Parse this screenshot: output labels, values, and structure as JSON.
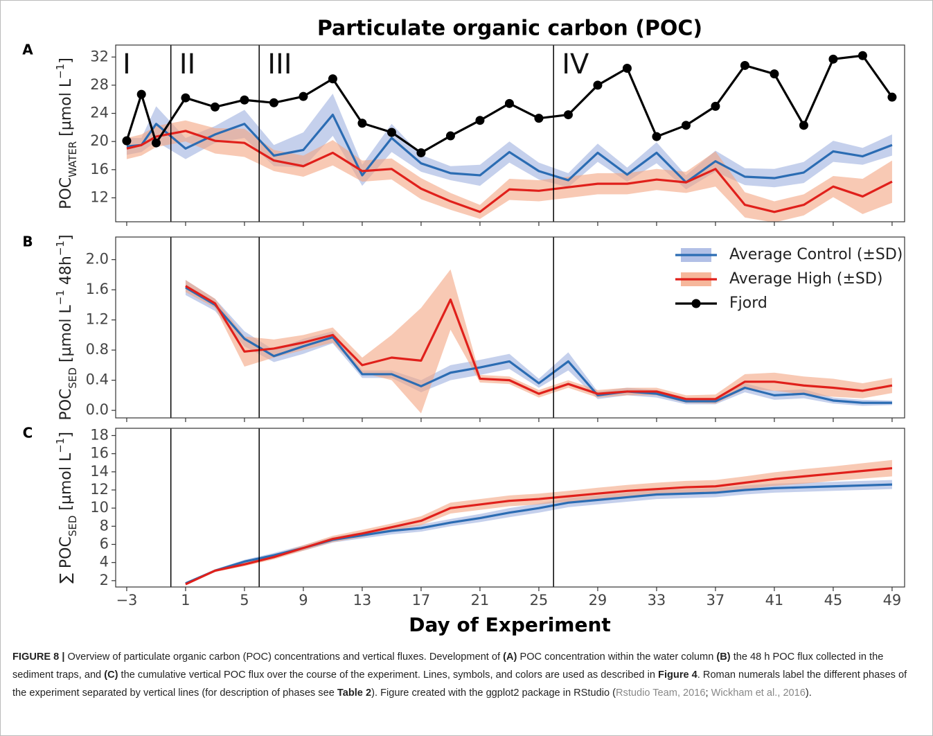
{
  "figure": {
    "title": "Particulate organic carbon (POC)",
    "xlabel": "Day of Experiment",
    "xlim": [
      -3.75,
      49.85
    ],
    "xticks": [
      {
        "value": -3,
        "label": "−3"
      },
      1,
      5,
      9,
      13,
      17,
      21,
      25,
      29,
      33,
      37,
      41,
      45,
      49
    ],
    "phase_lines": [
      0,
      6,
      26
    ],
    "phase_labels": [
      "I",
      "II",
      "III",
      "IV"
    ]
  },
  "chart_data": [
    {
      "type": "line",
      "panel_label": "A",
      "ylabel": [
        {
          "text": "POC"
        },
        {
          "text": "WATER",
          "sub": true
        },
        {
          "text": " [µmol L"
        },
        {
          "text": "−1",
          "sup": true
        },
        {
          "text": "]"
        }
      ],
      "x": [
        -3,
        -2,
        -1,
        1,
        3,
        5,
        7,
        9,
        11,
        13,
        15,
        17,
        19,
        21,
        23,
        25,
        27,
        29,
        31,
        33,
        35,
        37,
        39,
        41,
        43,
        45,
        47,
        49
      ],
      "ylim": [
        8.6,
        33.7
      ],
      "yticks": [
        12,
        16,
        20,
        24,
        28,
        32
      ],
      "series": [
        {
          "name": "Average Control (±SD)",
          "color": "#2b6cb3",
          "band_color": "#9fb0e0",
          "values": [
            19.3,
            19.5,
            22.5,
            19.0,
            21.0,
            22.5,
            18.0,
            18.8,
            23.8,
            15.2,
            20.5,
            16.9,
            15.5,
            15.2,
            18.5,
            15.8,
            14.5,
            18.4,
            15.3,
            18.4,
            14.2,
            17.2,
            15.0,
            14.8,
            15.6,
            18.6,
            17.9,
            19.5
          ],
          "sd": [
            1.2,
            1.0,
            2.5,
            1.5,
            1.2,
            2.0,
            1.5,
            2.5,
            3.0,
            1.5,
            2.0,
            1.2,
            1.0,
            1.5,
            1.5,
            1.2,
            1.0,
            1.3,
            1.0,
            1.5,
            1.0,
            1.5,
            1.2,
            1.3,
            1.5,
            1.5,
            1.2,
            1.5
          ]
        },
        {
          "name": "Average High (±SD)",
          "color": "#e0201b",
          "band_color": "#f4a582",
          "values": [
            19.0,
            19.5,
            20.7,
            21.5,
            20.1,
            19.8,
            17.3,
            16.5,
            18.4,
            15.8,
            16.1,
            13.3,
            11.5,
            10.0,
            13.2,
            13.0,
            13.5,
            14.0,
            14.0,
            14.6,
            14.2,
            16.1,
            11.0,
            10.0,
            11.0,
            13.6,
            12.2,
            14.3
          ],
          "sd": [
            1.5,
            1.5,
            1.5,
            1.5,
            1.8,
            2.0,
            1.5,
            1.5,
            1.8,
            1.5,
            1.5,
            1.5,
            1.2,
            1.0,
            1.5,
            1.5,
            1.5,
            1.5,
            1.5,
            1.5,
            1.5,
            2.5,
            1.8,
            1.5,
            1.5,
            1.5,
            2.5,
            3.0
          ]
        },
        {
          "name": "Fjord",
          "color": "#000000",
          "marker": true,
          "values": [
            20.1,
            26.7,
            19.8,
            26.2,
            24.9,
            25.9,
            25.5,
            26.4,
            28.9,
            22.6,
            21.3,
            18.4,
            20.8,
            23.0,
            25.4,
            23.3,
            23.8,
            28.0,
            30.4,
            20.7,
            22.3,
            25.0,
            30.8,
            29.6,
            22.3,
            31.7,
            32.2,
            26.3
          ]
        }
      ]
    },
    {
      "type": "line",
      "panel_label": "B",
      "ylabel": [
        {
          "text": "POC"
        },
        {
          "text": "SED",
          "sub": true
        },
        {
          "text": " [µmol L"
        },
        {
          "text": "−1",
          "sup": true
        },
        {
          "text": " 48h"
        },
        {
          "text": "−1",
          "sup": true
        },
        {
          "text": "]"
        }
      ],
      "x": [
        1,
        3,
        5,
        7,
        9,
        11,
        13,
        15,
        17,
        19,
        21,
        23,
        25,
        27,
        29,
        31,
        33,
        35,
        37,
        39,
        41,
        43,
        45,
        47,
        49
      ],
      "ylim": [
        -0.1,
        2.3
      ],
      "yticks": [
        {
          "value": 0,
          "label": "0.0"
        },
        0.4,
        0.8,
        1.2,
        1.6,
        {
          "value": 2,
          "label": "2.0"
        }
      ],
      "legend": "upper right",
      "series": [
        {
          "color": "#2b6cb3",
          "band_color": "#9fb0e0",
          "values": [
            1.63,
            1.4,
            0.95,
            0.72,
            0.85,
            0.97,
            0.48,
            0.48,
            0.32,
            0.5,
            0.57,
            0.65,
            0.36,
            0.65,
            0.2,
            0.25,
            0.22,
            0.12,
            0.12,
            0.3,
            0.2,
            0.22,
            0.13,
            0.1,
            0.1
          ],
          "sd": [
            0.1,
            0.08,
            0.1,
            0.08,
            0.1,
            0.08,
            0.05,
            0.05,
            0.08,
            0.1,
            0.1,
            0.1,
            0.06,
            0.12,
            0.05,
            0.05,
            0.05,
            0.04,
            0.04,
            0.06,
            0.06,
            0.06,
            0.04,
            0.04,
            0.03
          ]
        },
        {
          "color": "#e0201b",
          "band_color": "#f4a582",
          "values": [
            1.65,
            1.42,
            0.78,
            0.82,
            0.9,
            1.0,
            0.6,
            0.7,
            0.66,
            1.47,
            0.42,
            0.4,
            0.22,
            0.35,
            0.22,
            0.25,
            0.25,
            0.15,
            0.15,
            0.38,
            0.38,
            0.33,
            0.3,
            0.26,
            0.33
          ],
          "sd": [
            0.08,
            0.06,
            0.2,
            0.12,
            0.1,
            0.1,
            0.1,
            0.3,
            0.7,
            0.4,
            0.05,
            0.05,
            0.05,
            0.05,
            0.05,
            0.05,
            0.05,
            0.05,
            0.06,
            0.1,
            0.12,
            0.12,
            0.12,
            0.1,
            0.1
          ]
        }
      ]
    },
    {
      "type": "line",
      "panel_label": "C",
      "ylabel": [
        {
          "text": "∑ POC"
        },
        {
          "text": "SED",
          "sub": true
        },
        {
          "text": " [µmol L"
        },
        {
          "text": "−1",
          "sup": true
        },
        {
          "text": "]"
        }
      ],
      "x": [
        1,
        3,
        5,
        7,
        9,
        11,
        13,
        15,
        17,
        19,
        21,
        23,
        25,
        27,
        29,
        31,
        33,
        35,
        37,
        39,
        41,
        43,
        45,
        47,
        49
      ],
      "ylim": [
        1.3,
        18.8
      ],
      "yticks": [
        2,
        4,
        6,
        8,
        10,
        12,
        14,
        16,
        18
      ],
      "series": [
        {
          "color": "#2b6cb3",
          "band_color": "#9fb0e0",
          "values": [
            1.7,
            3.1,
            4.1,
            4.8,
            5.6,
            6.5,
            7.0,
            7.5,
            7.8,
            8.4,
            8.9,
            9.5,
            10.0,
            10.6,
            10.9,
            11.2,
            11.5,
            11.6,
            11.7,
            12.0,
            12.2,
            12.3,
            12.4,
            12.5,
            12.6
          ],
          "sd": [
            0.1,
            0.15,
            0.2,
            0.25,
            0.3,
            0.3,
            0.35,
            0.4,
            0.4,
            0.4,
            0.45,
            0.5,
            0.5,
            0.5,
            0.5,
            0.5,
            0.5,
            0.5,
            0.5,
            0.5,
            0.5,
            0.5,
            0.5,
            0.5,
            0.5
          ]
        },
        {
          "color": "#e0201b",
          "band_color": "#f4a582",
          "values": [
            1.6,
            3.1,
            3.8,
            4.6,
            5.6,
            6.6,
            7.2,
            7.9,
            8.6,
            10.0,
            10.4,
            10.8,
            11.0,
            11.3,
            11.6,
            11.9,
            12.1,
            12.3,
            12.4,
            12.8,
            13.2,
            13.5,
            13.8,
            14.1,
            14.4
          ],
          "sd": [
            0.1,
            0.15,
            0.2,
            0.25,
            0.3,
            0.35,
            0.4,
            0.4,
            0.5,
            0.6,
            0.6,
            0.6,
            0.6,
            0.6,
            0.65,
            0.65,
            0.7,
            0.7,
            0.7,
            0.7,
            0.75,
            0.8,
            0.8,
            0.85,
            0.9
          ]
        }
      ]
    }
  ],
  "caption": [
    "FIGURE 8 |",
    " Overview of particulate organic carbon (POC) concentrations and vertical fluxes. Development of ",
    "(A)",
    " POC concentration within the water column ",
    "(B)",
    " the 48 h POC flux collected in the sediment traps, and ",
    "(C)",
    " the cumulative vertical POC flux over the course of the experiment. Lines, symbols, and colors are used as described in ",
    "Figure 4",
    ". Roman numerals label the different phases of the experiment separated by vertical lines (for description of phases see ",
    "Table 2",
    "). Figure created with the ggplot2 package in RStudio (",
    "Rstudio Team, 2016",
    "; ",
    "Wickham et al., 2016",
    ")."
  ]
}
